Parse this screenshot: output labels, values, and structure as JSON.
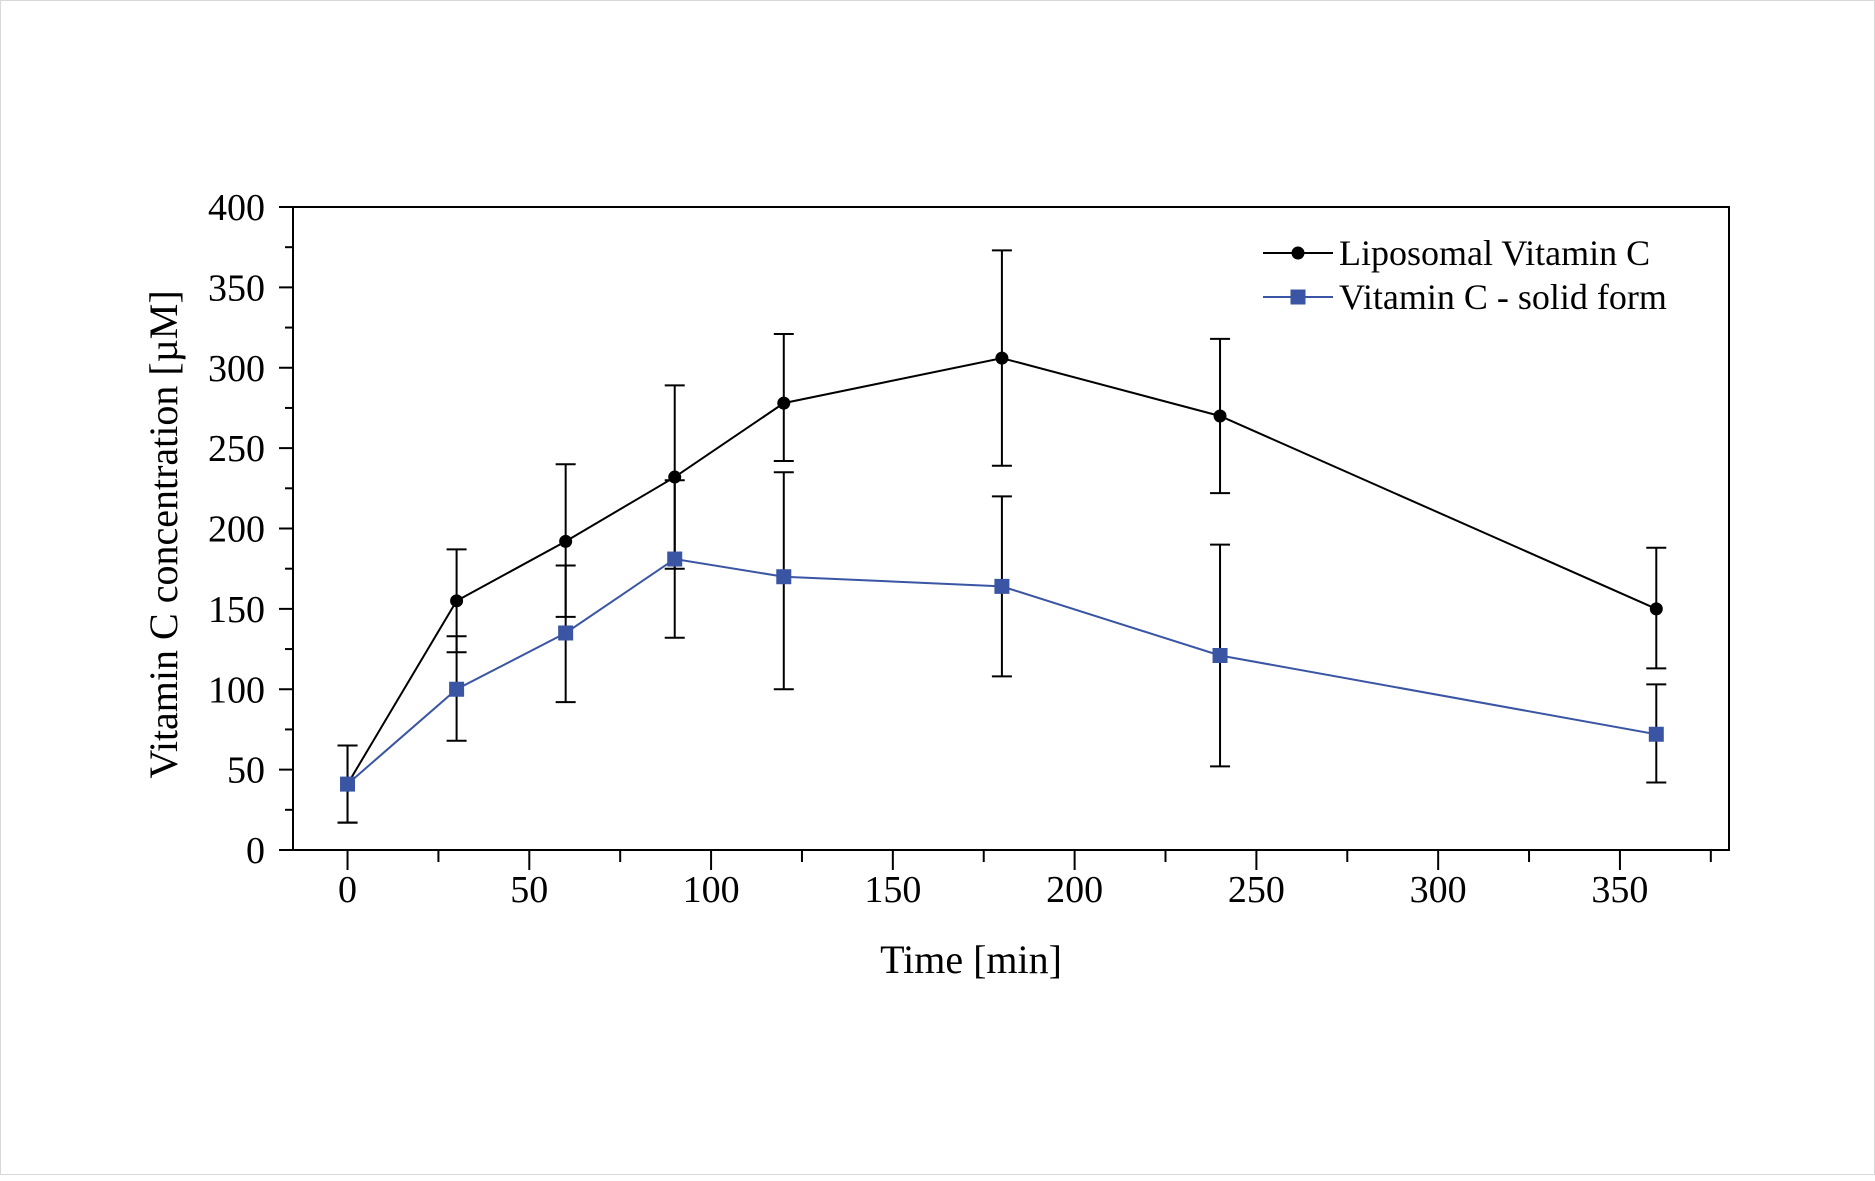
{
  "chart_data": {
    "type": "line",
    "title": "",
    "xlabel": "Time [min]",
    "ylabel": "Vitamin C concentration [µM]",
    "xlim": [
      -15,
      380
    ],
    "ylim": [
      0,
      400
    ],
    "x_ticks": [
      0,
      50,
      100,
      150,
      200,
      250,
      300,
      350
    ],
    "y_ticks": [
      0,
      50,
      100,
      150,
      200,
      250,
      300,
      350,
      400
    ],
    "grid": false,
    "legend_position": "top-right",
    "series": [
      {
        "name": "Liposomal Vitamin C",
        "color": "#000000",
        "marker": "circle",
        "x": [
          0,
          30,
          60,
          90,
          120,
          180,
          240,
          360
        ],
        "y": [
          41,
          155,
          192,
          232,
          278,
          306,
          270,
          150
        ],
        "err_low": [
          17,
          123,
          145,
          175,
          242,
          239,
          222,
          113
        ],
        "err_high": [
          65,
          187,
          240,
          289,
          321,
          373,
          318,
          188
        ]
      },
      {
        "name": "Vitamin C - solid form",
        "color": "#3a55a4",
        "marker": "square",
        "x": [
          0,
          30,
          60,
          90,
          120,
          180,
          240,
          360
        ],
        "y": [
          41,
          100,
          135,
          181,
          170,
          164,
          121,
          72
        ],
        "err_low": [
          17,
          68,
          92,
          132,
          100,
          108,
          52,
          42
        ],
        "err_high": [
          65,
          133,
          177,
          230,
          235,
          220,
          190,
          103
        ]
      }
    ]
  }
}
